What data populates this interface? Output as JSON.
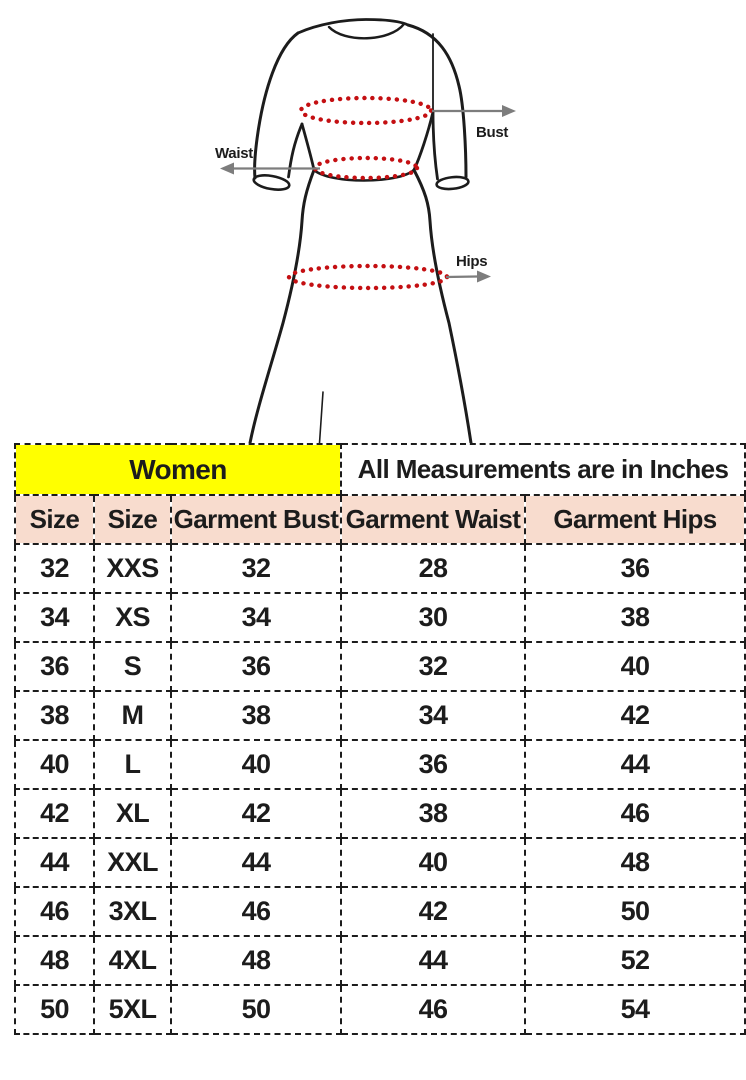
{
  "diagram": {
    "labels": {
      "bust": "Bust",
      "waist": "Waist",
      "hips": "Hips"
    },
    "colors": {
      "outline": "#1c1c1c",
      "dots": "#c40f12",
      "arrow": "#7d7d7d"
    }
  },
  "table": {
    "title_left": "Women",
    "title_right": "All Measurements are in Inches",
    "columns": [
      "Size",
      "Size",
      "Garment Bust",
      "Garment Waist",
      "Garment Hips"
    ],
    "rows": [
      [
        "32",
        "XXS",
        "32",
        "28",
        "36"
      ],
      [
        "34",
        "XS",
        "34",
        "30",
        "38"
      ],
      [
        "36",
        "S",
        "36",
        "32",
        "40"
      ],
      [
        "38",
        "M",
        "38",
        "34",
        "42"
      ],
      [
        "40",
        "L",
        "40",
        "36",
        "44"
      ],
      [
        "42",
        "XL",
        "42",
        "38",
        "46"
      ],
      [
        "44",
        "XXL",
        "44",
        "40",
        "48"
      ],
      [
        "46",
        "3XL",
        "46",
        "42",
        "50"
      ],
      [
        "48",
        "4XL",
        "48",
        "44",
        "52"
      ],
      [
        "50",
        "5XL",
        "50",
        "46",
        "54"
      ]
    ],
    "colors": {
      "women_bg": "#ffff00",
      "columns_bg": "#f8dcce",
      "border": "#1c1c1c"
    }
  }
}
